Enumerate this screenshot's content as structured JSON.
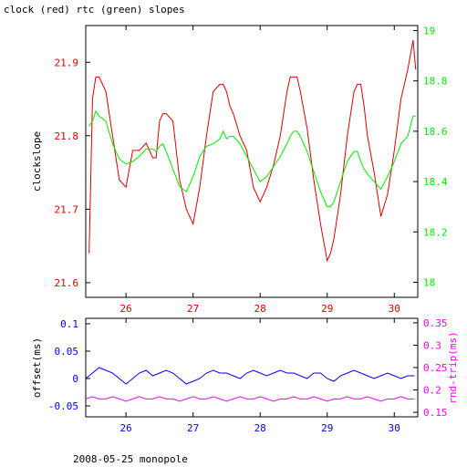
{
  "title": "clock (red) rtc (green) slopes",
  "footer": "2008-05-25 monopole",
  "colors": {
    "clock": "#dd0000",
    "rtc": "#00ee00",
    "offset": "#0000ff",
    "rndtrip": "#ff00ff",
    "axis": "#000000"
  },
  "chart_data": [
    {
      "type": "line",
      "ylabel_left": "clockslope",
      "ylabel_right": "",
      "xlim": [
        25.4,
        30.35
      ],
      "x_ticks": [
        26,
        27,
        28,
        29,
        30
      ],
      "x_tick_labels": [
        "26",
        "27",
        "28",
        "29",
        "30"
      ],
      "ylim_left": [
        21.58,
        21.95
      ],
      "y_ticks_left": [
        21.6,
        21.7,
        21.8,
        21.9
      ],
      "y_tick_labels_left": [
        "21.6",
        "21.7",
        "21.8",
        "21.9"
      ],
      "ylim_right": [
        17.94,
        19.02
      ],
      "y_ticks_right": [
        18.0,
        18.2,
        18.4,
        18.6,
        18.8,
        19.0
      ],
      "y_tick_labels_right": [
        "18",
        "18.2",
        "18.4",
        "18.6",
        "18.8",
        "19"
      ],
      "series": [
        {
          "name": "clock",
          "axis": "left",
          "color": "#dd0000",
          "x": [
            25.45,
            25.5,
            25.55,
            25.6,
            25.7,
            25.8,
            25.9,
            26.0,
            26.1,
            26.2,
            26.3,
            26.4,
            26.45,
            26.5,
            26.55,
            26.6,
            26.7,
            26.8,
            26.9,
            27.0,
            27.1,
            27.2,
            27.3,
            27.4,
            27.45,
            27.5,
            27.55,
            27.6,
            27.7,
            27.8,
            27.9,
            28.0,
            28.1,
            28.2,
            28.3,
            28.4,
            28.45,
            28.5,
            28.55,
            28.6,
            28.7,
            28.8,
            28.9,
            29.0,
            29.05,
            29.1,
            29.2,
            29.3,
            29.4,
            29.45,
            29.5,
            29.55,
            29.6,
            29.7,
            29.8,
            29.9,
            30.0,
            30.1,
            30.2,
            30.28,
            30.32
          ],
          "y": [
            21.64,
            21.85,
            21.88,
            21.88,
            21.86,
            21.8,
            21.74,
            21.73,
            21.78,
            21.78,
            21.79,
            21.77,
            21.77,
            21.82,
            21.83,
            21.83,
            21.82,
            21.74,
            21.7,
            21.68,
            21.73,
            21.8,
            21.86,
            21.87,
            21.87,
            21.86,
            21.84,
            21.83,
            21.8,
            21.78,
            21.73,
            21.71,
            21.73,
            21.76,
            21.8,
            21.86,
            21.88,
            21.88,
            21.88,
            21.86,
            21.81,
            21.74,
            21.68,
            21.63,
            21.64,
            21.66,
            21.72,
            21.8,
            21.86,
            21.87,
            21.87,
            21.84,
            21.8,
            21.75,
            21.69,
            21.72,
            21.78,
            21.85,
            21.89,
            21.93,
            21.89
          ]
        },
        {
          "name": "rtc",
          "axis": "right",
          "color": "#00ee00",
          "x": [
            25.45,
            25.5,
            25.55,
            25.6,
            25.7,
            25.8,
            25.9,
            26.0,
            26.1,
            26.2,
            26.3,
            26.4,
            26.45,
            26.5,
            26.55,
            26.6,
            26.7,
            26.8,
            26.9,
            27.0,
            27.1,
            27.2,
            27.3,
            27.4,
            27.45,
            27.5,
            27.55,
            27.6,
            27.7,
            27.8,
            27.9,
            28.0,
            28.1,
            28.2,
            28.3,
            28.4,
            28.45,
            28.5,
            28.55,
            28.6,
            28.7,
            28.8,
            28.9,
            29.0,
            29.05,
            29.1,
            29.2,
            29.3,
            29.4,
            29.45,
            29.5,
            29.55,
            29.6,
            29.7,
            29.8,
            29.9,
            30.0,
            30.1,
            30.2,
            30.28,
            30.32
          ],
          "y": [
            18.62,
            18.64,
            18.68,
            18.66,
            18.64,
            18.55,
            18.49,
            18.47,
            18.48,
            18.5,
            18.53,
            18.53,
            18.52,
            18.54,
            18.55,
            18.52,
            18.45,
            18.38,
            18.36,
            18.42,
            18.5,
            18.54,
            18.55,
            18.57,
            18.6,
            18.57,
            18.58,
            18.58,
            18.55,
            18.5,
            18.45,
            18.4,
            18.42,
            18.46,
            18.5,
            18.55,
            18.58,
            18.6,
            18.6,
            18.58,
            18.52,
            18.44,
            18.36,
            18.3,
            18.3,
            18.32,
            18.4,
            18.48,
            18.52,
            18.52,
            18.48,
            18.45,
            18.43,
            18.4,
            18.37,
            18.42,
            18.48,
            18.55,
            18.58,
            18.66,
            18.66
          ]
        }
      ]
    },
    {
      "type": "line",
      "ylabel_left": "offset(ms)",
      "ylabel_right": "rnd-trip(ms)",
      "xlim": [
        25.4,
        30.35
      ],
      "x_ticks": [
        26,
        27,
        28,
        29,
        30
      ],
      "x_tick_labels": [
        "26",
        "27",
        "28",
        "29",
        "30"
      ],
      "ylim_left": [
        -0.07,
        0.11
      ],
      "y_ticks_left": [
        -0.05,
        0.0,
        0.05,
        0.1
      ],
      "y_tick_labels_left": [
        "-0.05",
        "0",
        "0.05",
        "0.1"
      ],
      "ylim_right": [
        0.14,
        0.36
      ],
      "y_ticks_right": [
        0.15,
        0.2,
        0.25,
        0.3,
        0.35
      ],
      "y_tick_labels_right": [
        "0.15",
        "0.2",
        "0.25",
        "0.3",
        "0.35"
      ],
      "series": [
        {
          "name": "offset",
          "axis": "left",
          "color": "#0000ff",
          "x": [
            25.4,
            25.5,
            25.6,
            25.7,
            25.8,
            25.9,
            26.0,
            26.1,
            26.2,
            26.3,
            26.4,
            26.5,
            26.6,
            26.7,
            26.8,
            26.9,
            27.0,
            27.1,
            27.2,
            27.3,
            27.4,
            27.5,
            27.6,
            27.7,
            27.8,
            27.9,
            28.0,
            28.1,
            28.2,
            28.3,
            28.4,
            28.5,
            28.6,
            28.7,
            28.8,
            28.9,
            29.0,
            29.1,
            29.2,
            29.3,
            29.4,
            29.5,
            29.6,
            29.7,
            29.8,
            29.9,
            30.0,
            30.1,
            30.2,
            30.3
          ],
          "y": [
            0.0,
            0.01,
            0.02,
            0.015,
            0.01,
            0.0,
            -0.01,
            0.0,
            0.01,
            0.015,
            0.005,
            0.01,
            0.015,
            0.01,
            0.0,
            -0.01,
            -0.005,
            0.0,
            0.01,
            0.015,
            0.01,
            0.01,
            0.005,
            0.0,
            0.01,
            0.015,
            0.01,
            0.005,
            0.01,
            0.015,
            0.01,
            0.01,
            0.005,
            0.0,
            0.01,
            0.01,
            0.0,
            -0.005,
            0.005,
            0.01,
            0.015,
            0.01,
            0.005,
            0.0,
            0.005,
            0.01,
            0.005,
            0.0,
            0.005,
            0.005
          ]
        },
        {
          "name": "rnd-trip",
          "axis": "right",
          "color": "#ff00ff",
          "x": [
            25.4,
            25.5,
            25.6,
            25.7,
            25.8,
            25.9,
            26.0,
            26.1,
            26.2,
            26.3,
            26.4,
            26.5,
            26.6,
            26.7,
            26.8,
            26.9,
            27.0,
            27.1,
            27.2,
            27.3,
            27.4,
            27.5,
            27.6,
            27.7,
            27.8,
            27.9,
            28.0,
            28.1,
            28.2,
            28.3,
            28.4,
            28.5,
            28.6,
            28.7,
            28.8,
            28.9,
            29.0,
            29.1,
            29.2,
            29.3,
            29.4,
            29.5,
            29.6,
            29.7,
            29.8,
            29.9,
            30.0,
            30.1,
            30.2,
            30.3
          ],
          "y": [
            0.18,
            0.185,
            0.18,
            0.18,
            0.185,
            0.18,
            0.175,
            0.18,
            0.185,
            0.18,
            0.18,
            0.185,
            0.18,
            0.18,
            0.175,
            0.18,
            0.185,
            0.18,
            0.18,
            0.185,
            0.18,
            0.175,
            0.18,
            0.185,
            0.18,
            0.18,
            0.185,
            0.18,
            0.175,
            0.18,
            0.18,
            0.185,
            0.18,
            0.18,
            0.185,
            0.18,
            0.175,
            0.18,
            0.18,
            0.185,
            0.18,
            0.18,
            0.185,
            0.18,
            0.175,
            0.18,
            0.18,
            0.185,
            0.18,
            0.18
          ]
        }
      ]
    }
  ]
}
